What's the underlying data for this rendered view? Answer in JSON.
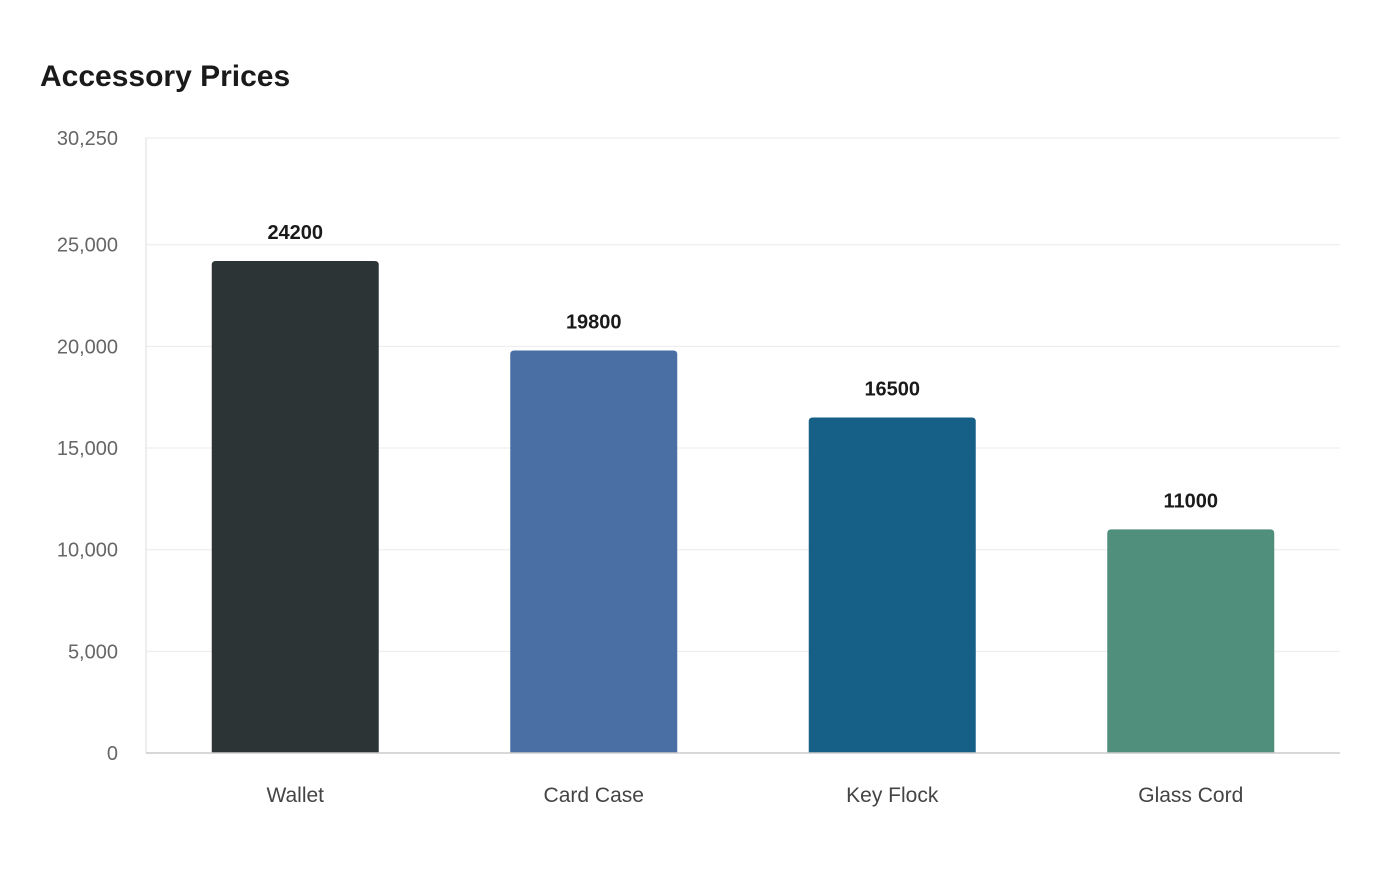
{
  "chart_data": {
    "type": "bar",
    "title": "Accessory Prices",
    "xlabel": "",
    "ylabel": "",
    "categories": [
      "Wallet",
      "Card Case",
      "Key Flock",
      "Glass Cord"
    ],
    "values": [
      24200,
      19800,
      16500,
      11000
    ],
    "data_labels": [
      "24200",
      "19800",
      "16500",
      "11000"
    ],
    "colors": [
      "#2d3436",
      "#4a6fa5",
      "#166088",
      "#4f8f7b"
    ],
    "ylim": [
      0,
      30250
    ],
    "yticks": [
      0,
      5000,
      10000,
      15000,
      20000,
      25000,
      30250
    ],
    "ytick_labels": [
      "0",
      "5,000",
      "10,000",
      "15,000",
      "20,000",
      "25,000",
      "30,250"
    ],
    "grid": true,
    "legend": "none"
  }
}
